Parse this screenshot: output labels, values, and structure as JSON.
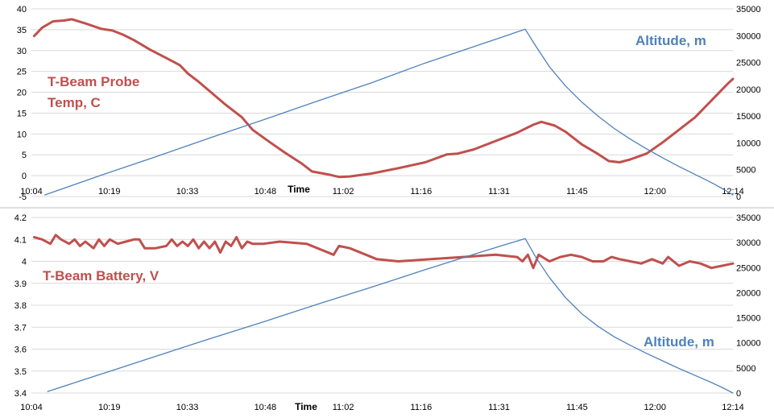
{
  "colors": {
    "temp": "#c0504d",
    "altitude": "#4f81bd",
    "grid": "#d9d9d9"
  },
  "chart_data": [
    {
      "type": "line",
      "xlabel": "Time",
      "x_ticks": [
        "10:04",
        "10:19",
        "10:33",
        "10:48",
        "11:02",
        "11:16",
        "11:31",
        "11:45",
        "12:00",
        "12:14"
      ],
      "x_range_minutes": [
        604,
        734
      ],
      "ylim": [
        -5,
        40
      ],
      "y_ticks": [
        "-5",
        "0",
        "5",
        "10",
        "15",
        "20",
        "25",
        "30",
        "35",
        "40"
      ],
      "y2lim": [
        0,
        35000
      ],
      "y2_ticks": [
        "0",
        "5000",
        "10000",
        "15000",
        "20000",
        "25000",
        "30000",
        "35000"
      ],
      "grid": true,
      "annotations": {
        "temp_line1": "T-Beam Probe",
        "temp_line2": "Temp, C",
        "altitude": "Altitude, m"
      },
      "series": [
        {
          "name": "T-Beam Probe Temp, C",
          "axis": "left",
          "points": [
            [
              604.5,
              33.5
            ],
            [
              606,
              35.5
            ],
            [
              608,
              37
            ],
            [
              610,
              37.2
            ],
            [
              611.5,
              37.5
            ],
            [
              614,
              36.5
            ],
            [
              617,
              35.2
            ],
            [
              619,
              34.8
            ],
            [
              621,
              33.8
            ],
            [
              623,
              32.5
            ],
            [
              626,
              30.2
            ],
            [
              629,
              28.2
            ],
            [
              631.5,
              26.5
            ],
            [
              633,
              24.5
            ],
            [
              635,
              22.5
            ],
            [
              637,
              20.3
            ],
            [
              640,
              17
            ],
            [
              643,
              14
            ],
            [
              645,
              11
            ],
            [
              648,
              8.2
            ],
            [
              651,
              5.5
            ],
            [
              654,
              3
            ],
            [
              656,
              1
            ],
            [
              659,
              0.3
            ],
            [
              661,
              -0.3
            ],
            [
              663,
              -0.2
            ],
            [
              667,
              0.5
            ],
            [
              672,
              1.8
            ],
            [
              677,
              3.2
            ],
            [
              681,
              5.1
            ],
            [
              683,
              5.3
            ],
            [
              686,
              6.3
            ],
            [
              690,
              8.3
            ],
            [
              694,
              10.3
            ],
            [
              697,
              12.2
            ],
            [
              698.5,
              12.9
            ],
            [
              701,
              12
            ],
            [
              703,
              10.5
            ],
            [
              706,
              7.5
            ],
            [
              709,
              5.2
            ],
            [
              711,
              3.5
            ],
            [
              713,
              3.2
            ],
            [
              715,
              3.9
            ],
            [
              718,
              5.3
            ],
            [
              721,
              8
            ],
            [
              724,
              11
            ],
            [
              727,
              14
            ],
            [
              730,
              18
            ],
            [
              733,
              22
            ],
            [
              734,
              23.2
            ]
          ]
        },
        {
          "name": "Altitude, m",
          "axis": "right",
          "points": [
            [
              606.5,
              300
            ],
            [
              617,
              4000
            ],
            [
              627,
              7400
            ],
            [
              637,
              10900
            ],
            [
              647,
              14300
            ],
            [
              657,
              17800
            ],
            [
              667,
              21200
            ],
            [
              677,
              24900
            ],
            [
              687,
              28300
            ],
            [
              695.5,
              31200
            ],
            [
              697.5,
              28000
            ],
            [
              700,
              24200
            ],
            [
              703,
              20600
            ],
            [
              706,
              17600
            ],
            [
              709,
              15000
            ],
            [
              712,
              12700
            ],
            [
              715,
              10700
            ],
            [
              718,
              8900
            ],
            [
              721,
              7200
            ],
            [
              724,
              5600
            ],
            [
              727,
              4100
            ],
            [
              730,
              2600
            ],
            [
              732,
              1500
            ],
            [
              734,
              300
            ]
          ]
        }
      ]
    },
    {
      "type": "line",
      "xlabel": "Time",
      "x_ticks": [
        "10:04",
        "10:19",
        "10:33",
        "10:48",
        "11:02",
        "11:16",
        "11:31",
        "11:45",
        "12:00",
        "12:14"
      ],
      "x_range_minutes": [
        604,
        734
      ],
      "ylim": [
        3.4,
        4.2
      ],
      "y_ticks": [
        "3.4",
        "3.5",
        "3.6",
        "3.7",
        "3.8",
        "3.9",
        "4",
        "4.1",
        "4.2"
      ],
      "y2lim": [
        0,
        35000
      ],
      "y2_ticks": [
        "0",
        "5000",
        "10000",
        "15000",
        "20000",
        "25000",
        "30000",
        "35000"
      ],
      "grid": true,
      "annotations": {
        "battery": "T-Beam Battery, V",
        "altitude": "Altitude, m"
      },
      "series": [
        {
          "name": "T-Beam Battery, V",
          "axis": "left",
          "points": [
            [
              604.5,
              4.11
            ],
            [
              606,
              4.1
            ],
            [
              607.5,
              4.08
            ],
            [
              608.5,
              4.12
            ],
            [
              609.5,
              4.1
            ],
            [
              611,
              4.08
            ],
            [
              612,
              4.1
            ],
            [
              613,
              4.07
            ],
            [
              614,
              4.09
            ],
            [
              615.5,
              4.06
            ],
            [
              616.5,
              4.1
            ],
            [
              617.5,
              4.07
            ],
            [
              618.5,
              4.1
            ],
            [
              620,
              4.08
            ],
            [
              621.5,
              4.09
            ],
            [
              623,
              4.1
            ],
            [
              624,
              4.1
            ],
            [
              625,
              4.06
            ],
            [
              627,
              4.06
            ],
            [
              629,
              4.07
            ],
            [
              630,
              4.1
            ],
            [
              631,
              4.07
            ],
            [
              632,
              4.09
            ],
            [
              633,
              4.07
            ],
            [
              634,
              4.1
            ],
            [
              635,
              4.06
            ],
            [
              636,
              4.09
            ],
            [
              637,
              4.06
            ],
            [
              638,
              4.09
            ],
            [
              639,
              4.04
            ],
            [
              640,
              4.09
            ],
            [
              641,
              4.07
            ],
            [
              642,
              4.11
            ],
            [
              643,
              4.06
            ],
            [
              644,
              4.09
            ],
            [
              645,
              4.08
            ],
            [
              647,
              4.08
            ],
            [
              650,
              4.09
            ],
            [
              655,
              4.08
            ],
            [
              658,
              4.05
            ],
            [
              660,
              4.03
            ],
            [
              661,
              4.07
            ],
            [
              663,
              4.06
            ],
            [
              666,
              4.03
            ],
            [
              668,
              4.01
            ],
            [
              672,
              4.0
            ],
            [
              678,
              4.01
            ],
            [
              684,
              4.02
            ],
            [
              690,
              4.03
            ],
            [
              694,
              4.02
            ],
            [
              695,
              4.0
            ],
            [
              696,
              4.03
            ],
            [
              697,
              3.97
            ],
            [
              698,
              4.03
            ],
            [
              700,
              4.0
            ],
            [
              702,
              4.02
            ],
            [
              704,
              4.03
            ],
            [
              706,
              4.02
            ],
            [
              708,
              4.0
            ],
            [
              710,
              4.0
            ],
            [
              711.5,
              4.02
            ],
            [
              713,
              4.01
            ],
            [
              715,
              4.0
            ],
            [
              717,
              3.99
            ],
            [
              719,
              4.01
            ],
            [
              721,
              3.99
            ],
            [
              722,
              4.02
            ],
            [
              724,
              3.98
            ],
            [
              726,
              4.0
            ],
            [
              728,
              3.99
            ],
            [
              730,
              3.97
            ],
            [
              732,
              3.98
            ],
            [
              734,
              3.99
            ]
          ]
        },
        {
          "name": "Altitude, m",
          "axis": "right",
          "points": [
            [
              607,
              300
            ],
            [
              617,
              3800
            ],
            [
              627,
              7300
            ],
            [
              637,
              10800
            ],
            [
              647,
              14200
            ],
            [
              657,
              17700
            ],
            [
              667,
              21100
            ],
            [
              677,
              24600
            ],
            [
              687,
              28000
            ],
            [
              695.5,
              30800
            ],
            [
              697.5,
              27000
            ],
            [
              700,
              23000
            ],
            [
              703,
              19000
            ],
            [
              706,
              15800
            ],
            [
              709,
              13300
            ],
            [
              712,
              11200
            ],
            [
              715,
              9500
            ],
            [
              718,
              7900
            ],
            [
              721,
              6400
            ],
            [
              724,
              4900
            ],
            [
              727,
              3500
            ],
            [
              730,
              2100
            ],
            [
              732,
              1100
            ],
            [
              734,
              0
            ]
          ]
        }
      ]
    }
  ]
}
